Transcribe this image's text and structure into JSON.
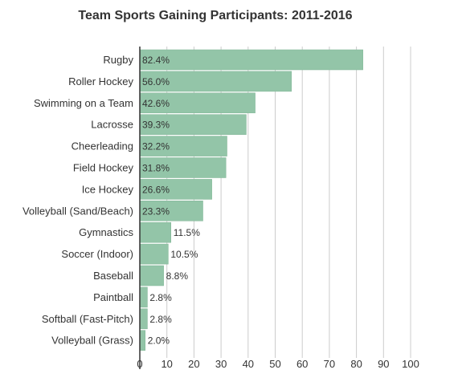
{
  "chart_data": {
    "type": "bar",
    "orientation": "horizontal",
    "title": "Team Sports Gaining Participants: 2011-2016",
    "categories": [
      "Rugby",
      "Roller Hockey",
      "Swimming on a Team",
      "Lacrosse",
      "Cheerleading",
      "Field Hockey",
      "Ice Hockey",
      "Volleyball (Sand/Beach)",
      "Gymnastics",
      "Soccer (Indoor)",
      "Baseball",
      "Paintball",
      "Softball (Fast-Pitch)",
      "Volleyball (Grass)"
    ],
    "values": [
      82.4,
      56.0,
      42.6,
      39.3,
      32.2,
      31.8,
      26.6,
      23.3,
      11.5,
      10.5,
      8.8,
      2.8,
      2.8,
      2.0
    ],
    "data_labels": [
      "82.4%",
      "56.0%",
      "42.6%",
      "39.3%",
      "32.2%",
      "31.8%",
      "26.6%",
      "23.3%",
      "11.5%",
      "10.5%",
      "8.8%",
      "2.8%",
      "2.8%",
      "2.0%"
    ],
    "xticks": [
      "0",
      "10",
      "20",
      "30",
      "40",
      "50",
      "60",
      "70",
      "80",
      "90",
      "100"
    ],
    "xlim": [
      0,
      100
    ],
    "xlabel": "",
    "ylabel": "",
    "grid": true,
    "bar_color": "#93c5a8",
    "bar_edge_color": "#7fb595"
  }
}
